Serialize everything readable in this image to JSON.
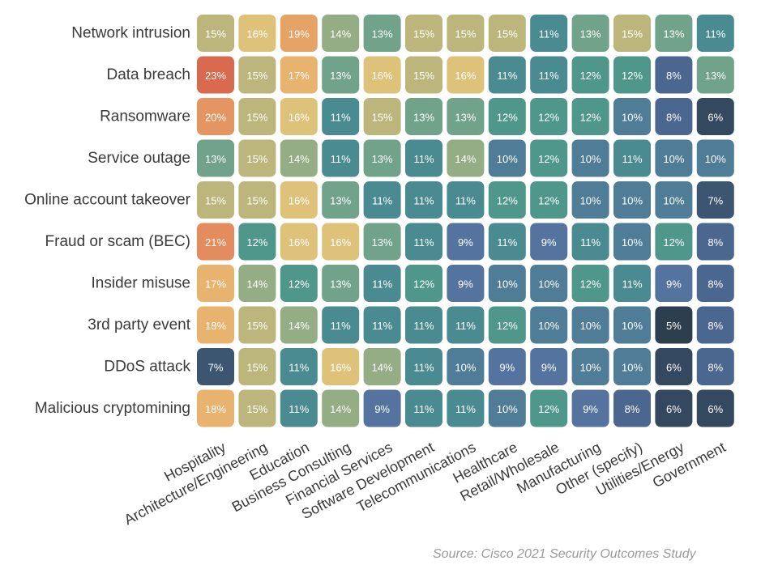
{
  "chart_data": {
    "type": "heatmap",
    "unit": "%",
    "rows": [
      "Network intrusion",
      "Data breach",
      "Ransomware",
      "Service outage",
      "Online account takeover",
      "Fraud or scam (BEC)",
      "Insider misuse",
      "3rd party event",
      "DDoS attack",
      "Malicious cryptomining"
    ],
    "columns": [
      "Hospitality",
      "Architecture/Engineering",
      "Education",
      "Business Consulting",
      "Financial Services",
      "Software Development",
      "Telecommunications",
      "Healthcare",
      "Retail/Wholesale",
      "Manufacturing",
      "Other (specify)",
      "Utilities/Energy",
      "Government"
    ],
    "values": [
      [
        15,
        16,
        19,
        14,
        13,
        15,
        15,
        15,
        11,
        13,
        15,
        13,
        11
      ],
      [
        23,
        15,
        17,
        13,
        16,
        15,
        16,
        11,
        11,
        12,
        12,
        8,
        13
      ],
      [
        20,
        15,
        16,
        11,
        15,
        13,
        13,
        12,
        12,
        12,
        10,
        8,
        6
      ],
      [
        13,
        15,
        14,
        11,
        13,
        11,
        14,
        10,
        12,
        10,
        11,
        10,
        10
      ],
      [
        15,
        15,
        16,
        13,
        11,
        11,
        11,
        12,
        12,
        10,
        10,
        10,
        7
      ],
      [
        21,
        12,
        16,
        16,
        13,
        11,
        9,
        11,
        9,
        11,
        10,
        12,
        8
      ],
      [
        17,
        14,
        12,
        13,
        11,
        12,
        9,
        10,
        10,
        12,
        11,
        9,
        8
      ],
      [
        18,
        15,
        14,
        11,
        11,
        11,
        11,
        12,
        10,
        10,
        10,
        5,
        8
      ],
      [
        7,
        15,
        11,
        16,
        14,
        11,
        10,
        9,
        9,
        10,
        10,
        6,
        8
      ],
      [
        18,
        15,
        11,
        14,
        9,
        11,
        11,
        10,
        12,
        9,
        8,
        6,
        6
      ]
    ],
    "colors": {
      "5": "#2d3f4f",
      "6": "#34495f",
      "7": "#3c5672",
      "8": "#4b6790",
      "9": "#54749f",
      "10": "#4f7c96",
      "11": "#4a8a91",
      "12": "#4f978b",
      "13": "#70a38a",
      "14": "#94ad84",
      "15": "#bdb67c",
      "16": "#dfc27a",
      "17": "#e8b36e",
      "18": "#e8b36e",
      "19": "#e5a366",
      "20": "#e49562",
      "21": "#e48c5e",
      "22": "#dd7353",
      "23": "#d9694f"
    }
  },
  "source": "Source: Cisco 2021 Security Outcomes Study"
}
